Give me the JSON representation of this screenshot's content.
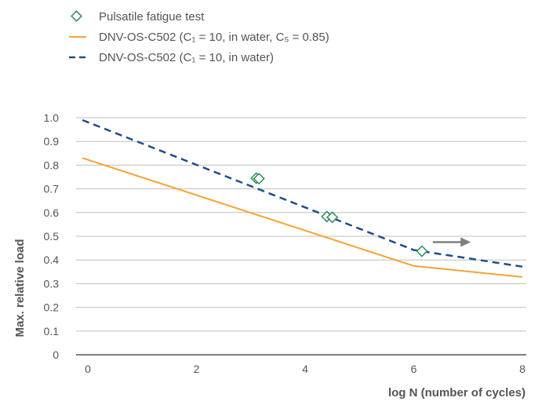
{
  "chart_data": {
    "type": "line",
    "title": "",
    "xlabel": "log N (number of cycles)",
    "ylabel": "Max. relative load",
    "xlim": [
      0,
      8
    ],
    "ylim": [
      0,
      1.0
    ],
    "x_ticks": [
      "0",
      "2",
      "4",
      "6",
      "8"
    ],
    "y_ticks": [
      "0",
      "0.1",
      "0.2",
      "0.3",
      "0.4",
      "0.5",
      "0.6",
      "0.7",
      "0.8",
      "0.9",
      "1.0"
    ],
    "grid": true,
    "legend_position": "top-left",
    "series": [
      {
        "name": "Pulsatile fatigue test",
        "kind": "scatter",
        "marker": "diamond-icon",
        "color": "#2e8b57",
        "points": [
          {
            "x": 3.1,
            "y": 0.745
          },
          {
            "x": 3.15,
            "y": 0.743
          },
          {
            "x": 4.4,
            "y": 0.583
          },
          {
            "x": 4.5,
            "y": 0.58
          },
          {
            "x": 6.15,
            "y": 0.437
          }
        ]
      },
      {
        "name": "DNV-OS-C502 (C₁ = 10, in water, C₅ = 0.85)",
        "kind": "line",
        "style": "solid",
        "color": "#f7a234",
        "points": [
          {
            "x": -0.1,
            "y": 0.83
          },
          {
            "x": 6.0,
            "y": 0.375
          },
          {
            "x": 8.0,
            "y": 0.328
          }
        ]
      },
      {
        "name": "DNV-OS-C502 (C₁ = 10, in water)",
        "kind": "line",
        "style": "dashed",
        "color": "#1f4e8c",
        "points": [
          {
            "x": -0.1,
            "y": 0.99
          },
          {
            "x": 6.0,
            "y": 0.442
          },
          {
            "x": 8.0,
            "y": 0.372
          }
        ]
      }
    ],
    "annotations": [
      {
        "type": "arrow",
        "icon": "right-arrow-icon",
        "color": "#7f7f7f",
        "from": {
          "x": 6.35,
          "y": 0.475
        },
        "to": {
          "x": 7.05,
          "y": 0.475
        }
      }
    ]
  }
}
